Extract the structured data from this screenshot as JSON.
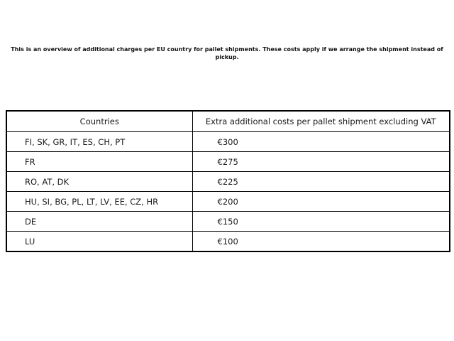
{
  "description": "This is an overview of additional charges per EU country for pallet shipments. These costs apply if we arrange the shipment instead of pickup.",
  "table": {
    "headers": {
      "countries": "Countries",
      "cost": "Extra additional costs per pallet shipment excluding VAT"
    },
    "rows": [
      {
        "countries": "FI, SK, GR, IT, ES, CH, PT",
        "cost": "€300"
      },
      {
        "countries": "FR",
        "cost": "€275"
      },
      {
        "countries": "RO, AT, DK",
        "cost": "€225"
      },
      {
        "countries": "HU, SI, BG, PL, LT, LV, EE, CZ, HR",
        "cost": "€200"
      },
      {
        "countries": "DE",
        "cost": "€150"
      },
      {
        "countries": "LU",
        "cost": "€100"
      }
    ]
  },
  "colors": {
    "background": "#ffffff",
    "text": "#1a1a1a",
    "border": "#000000"
  }
}
